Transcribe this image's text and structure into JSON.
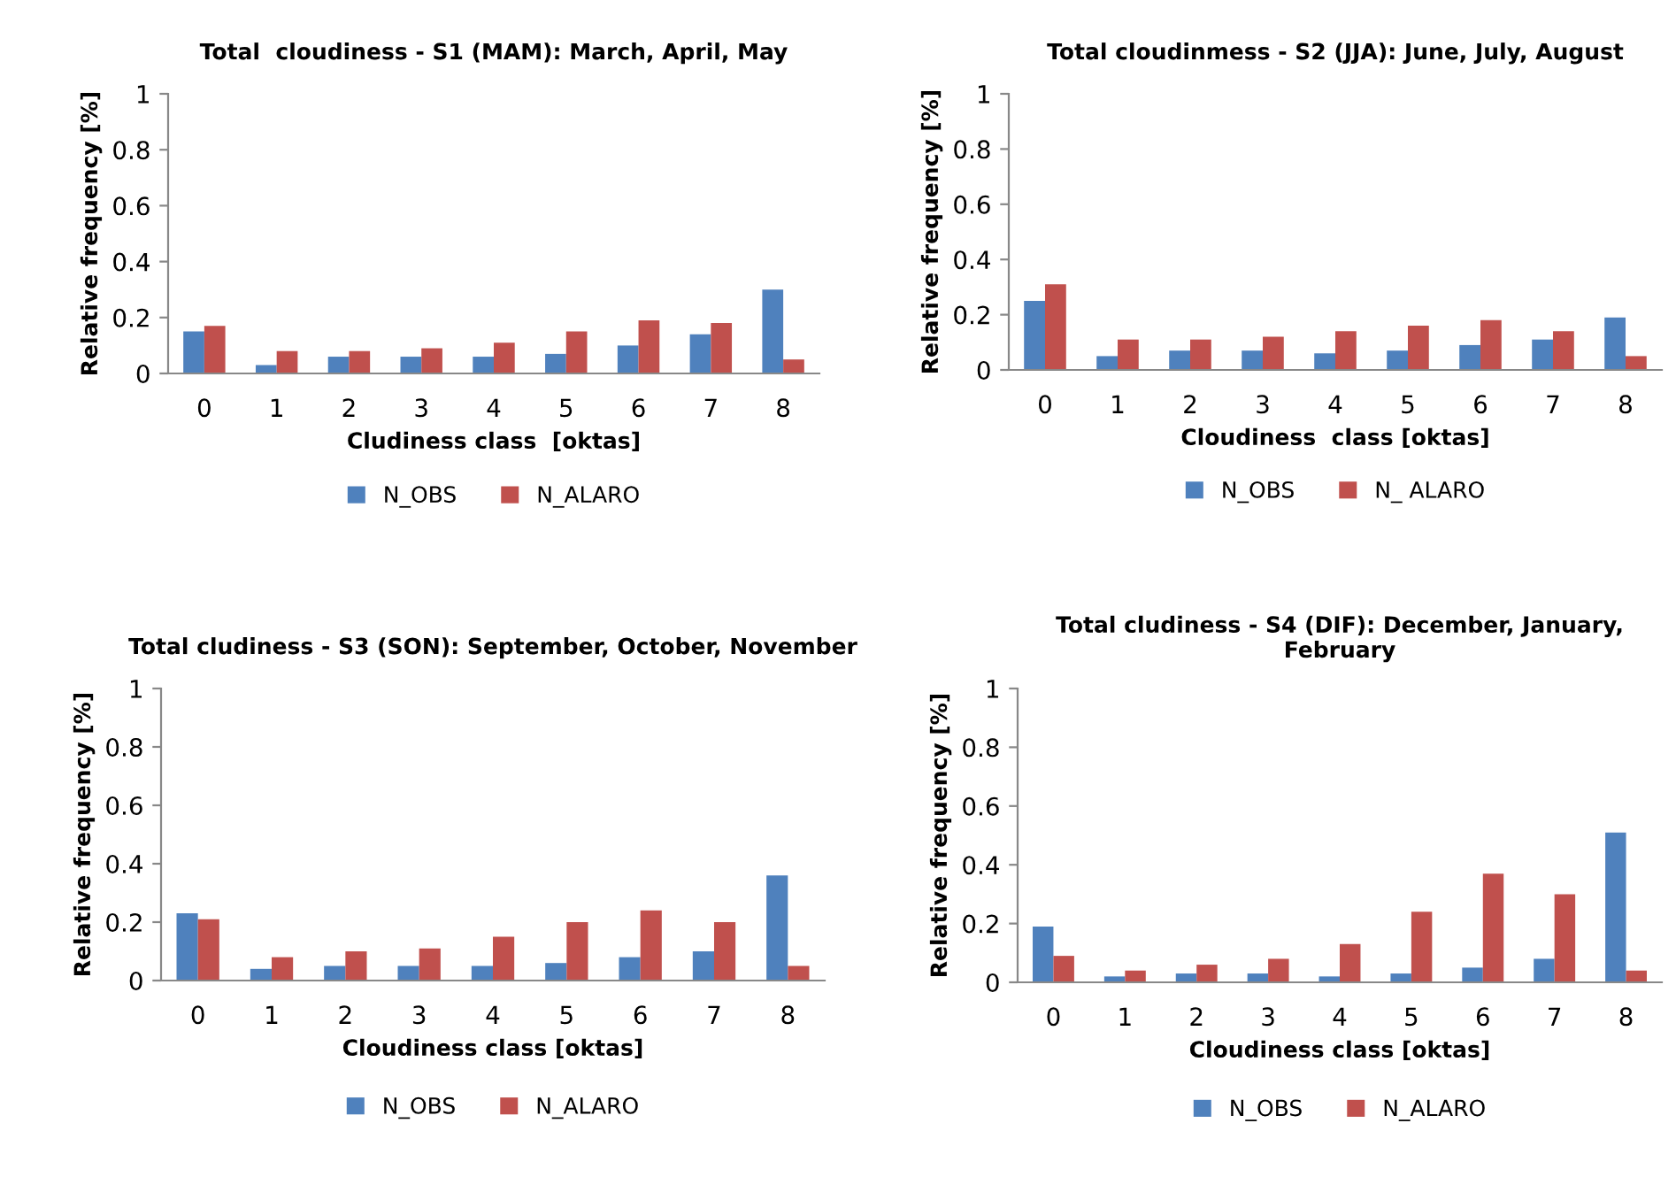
{
  "chart_data": [
    {
      "type": "bar",
      "title": "Total  cloudiness - S1 (MAM): March, April, May",
      "xlabel": "Cludiness class  [oktas]",
      "ylabel": "Relative frequency [%]",
      "categories": [
        "0",
        "1",
        "2",
        "3",
        "4",
        "5",
        "6",
        "7",
        "8"
      ],
      "ylim": [
        0,
        1
      ],
      "yticks": [
        0,
        0.2,
        0.4,
        0.6,
        0.8,
        1
      ],
      "grid": false,
      "legend": "bottom",
      "series": [
        {
          "name": "N_OBS",
          "color": "#4f81bd",
          "values": [
            0.15,
            0.03,
            0.06,
            0.06,
            0.06,
            0.07,
            0.1,
            0.14,
            0.3
          ]
        },
        {
          "name": "N_ALARO",
          "color": "#c0504d",
          "values": [
            0.17,
            0.08,
            0.08,
            0.09,
            0.11,
            0.15,
            0.19,
            0.18,
            0.05
          ]
        }
      ]
    },
    {
      "type": "bar",
      "title": "Total cloudinmess - S2 (JJA): June, July, August",
      "xlabel": "Cloudiness  class [oktas]",
      "ylabel": "Relative frequency [%]",
      "categories": [
        "0",
        "1",
        "2",
        "3",
        "4",
        "5",
        "6",
        "7",
        "8"
      ],
      "ylim": [
        0,
        1
      ],
      "yticks": [
        0,
        0.2,
        0.4,
        0.6,
        0.8,
        1
      ],
      "grid": false,
      "legend": "bottom",
      "series": [
        {
          "name": "N_OBS",
          "color": "#4f81bd",
          "values": [
            0.25,
            0.05,
            0.07,
            0.07,
            0.06,
            0.07,
            0.09,
            0.11,
            0.19
          ]
        },
        {
          "name": "N_ ALARO",
          "color": "#c0504d",
          "values": [
            0.31,
            0.11,
            0.11,
            0.12,
            0.14,
            0.16,
            0.18,
            0.14,
            0.05
          ]
        }
      ]
    },
    {
      "type": "bar",
      "title": "Total cludiness - S3 (SON): September, October, November",
      "xlabel": "Cloudiness class [oktas]",
      "ylabel": "Relative frequency [%]",
      "categories": [
        "0",
        "1",
        "2",
        "3",
        "4",
        "5",
        "6",
        "7",
        "8"
      ],
      "ylim": [
        0,
        1
      ],
      "yticks": [
        0,
        0.2,
        0.4,
        0.6,
        0.8,
        1
      ],
      "grid": false,
      "legend": "bottom",
      "series": [
        {
          "name": "N_OBS",
          "color": "#4f81bd",
          "values": [
            0.23,
            0.04,
            0.05,
            0.05,
            0.05,
            0.06,
            0.08,
            0.1,
            0.36
          ]
        },
        {
          "name": "N_ALARO",
          "color": "#c0504d",
          "values": [
            0.21,
            0.08,
            0.1,
            0.11,
            0.15,
            0.2,
            0.24,
            0.2,
            0.05
          ]
        }
      ]
    },
    {
      "type": "bar",
      "title": "Total cludiness - S4 (DIF): December, January, February",
      "xlabel": "Cloudiness class [oktas]",
      "ylabel": "Relative frequency [%]",
      "categories": [
        "0",
        "1",
        "2",
        "3",
        "4",
        "5",
        "6",
        "7",
        "8"
      ],
      "ylim": [
        0,
        1
      ],
      "yticks": [
        0,
        0.2,
        0.4,
        0.6,
        0.8,
        1
      ],
      "grid": false,
      "legend": "bottom",
      "series": [
        {
          "name": "N_OBS",
          "color": "#4f81bd",
          "values": [
            0.19,
            0.02,
            0.03,
            0.03,
            0.02,
            0.03,
            0.05,
            0.08,
            0.51
          ]
        },
        {
          "name": "N_ALARO",
          "color": "#c0504d",
          "values": [
            0.09,
            0.04,
            0.06,
            0.08,
            0.13,
            0.24,
            0.37,
            0.3,
            0.04
          ]
        }
      ]
    }
  ]
}
